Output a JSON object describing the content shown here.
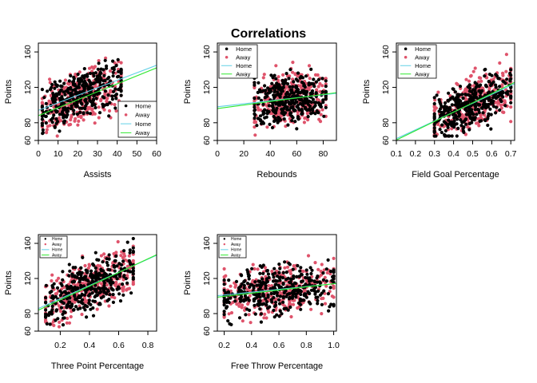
{
  "title": "Correlations",
  "colors": {
    "home_points": "#000000",
    "away_points": "#DF536B",
    "home_line": "#61D0E6",
    "away_line": "#2EE82E"
  },
  "legend_labels": {
    "home_points": "Home",
    "away_points": "Away",
    "home_line": "Home",
    "away_line": "Away"
  },
  "chart_data": [
    {
      "type": "scatter",
      "xlabel": "Assists",
      "ylabel": "Points",
      "xlim": [
        0,
        60
      ],
      "ylim": [
        60,
        170
      ],
      "xticks": [
        "0",
        "10",
        "20",
        "30",
        "40",
        "50",
        "60"
      ],
      "yticks": [
        "60",
        "80",
        "120",
        "160"
      ],
      "legend": "bottom-right",
      "x_range": [
        2,
        42
      ],
      "home_fit": [
        94,
        0.85
      ],
      "away_fit": [
        88,
        0.9
      ],
      "series": [
        {
          "name": "Home"
        },
        {
          "name": "Away"
        }
      ],
      "lines": [
        {
          "name": "Home",
          "intercept": 94,
          "slope": 0.85
        },
        {
          "name": "Away",
          "intercept": 88,
          "slope": 0.9
        }
      ]
    },
    {
      "type": "scatter",
      "xlabel": "Rebounds",
      "ylabel": "Points",
      "xlim": [
        0,
        90
      ],
      "ylim": [
        60,
        170
      ],
      "xticks": [
        "0",
        "20",
        "40",
        "60",
        "80"
      ],
      "yticks": [
        "60",
        "80",
        "120",
        "160"
      ],
      "legend": "top-left",
      "x_range": [
        28,
        82
      ],
      "home_fit": [
        98,
        0.17
      ],
      "away_fit": [
        96,
        0.2
      ],
      "series": [
        {
          "name": "Home"
        },
        {
          "name": "Away"
        }
      ],
      "lines": [
        {
          "name": "Home",
          "intercept": 98,
          "slope": 0.17
        },
        {
          "name": "Away",
          "intercept": 96,
          "slope": 0.2
        }
      ]
    },
    {
      "type": "scatter",
      "xlabel": "Field Goal Percentage",
      "ylabel": "Points",
      "xlim": [
        0.1,
        0.72
      ],
      "ylim": [
        60,
        170
      ],
      "xticks": [
        "0.1",
        "0.2",
        "0.3",
        "0.4",
        "0.5",
        "0.6",
        "0.7"
      ],
      "yticks": [
        "60",
        "80",
        "120",
        "160"
      ],
      "legend": "top-left",
      "x_range": [
        0.3,
        0.7
      ],
      "home_fit": [
        52,
        100
      ],
      "away_fit": [
        50,
        105
      ],
      "series": [
        {
          "name": "Home"
        },
        {
          "name": "Away"
        }
      ],
      "lines": [
        {
          "name": "Home",
          "intercept": 52,
          "slope": 100
        },
        {
          "name": "Away",
          "intercept": 50,
          "slope": 105
        }
      ]
    },
    {
      "type": "scatter",
      "xlabel": "Three Point Percentage",
      "ylabel": "Points",
      "xlim": [
        0.05,
        0.86
      ],
      "ylim": [
        60,
        170
      ],
      "xticks": [
        "0.2",
        "0.4",
        "0.6",
        "0.8"
      ],
      "yticks": [
        "60",
        "80",
        "120",
        "160"
      ],
      "legend": "top-left",
      "x_range": [
        0.1,
        0.7
      ],
      "home_fit": [
        82,
        75
      ],
      "away_fit": [
        80,
        78
      ],
      "series": [
        {
          "name": "Home"
        },
        {
          "name": "Away"
        }
      ],
      "lines": [
        {
          "name": "Home",
          "intercept": 82,
          "slope": 75
        },
        {
          "name": "Away",
          "intercept": 80,
          "slope": 78
        }
      ]
    },
    {
      "type": "scatter",
      "xlabel": "Free Throw Percentage",
      "ylabel": "Points",
      "xlim": [
        0.15,
        1.02
      ],
      "ylim": [
        60,
        170
      ],
      "xticks": [
        "0.2",
        "0.4",
        "0.6",
        "0.8",
        "1.0"
      ],
      "yticks": [
        "60",
        "80",
        "120",
        "160"
      ],
      "legend": "top-left",
      "x_range": [
        0.2,
        1.0
      ],
      "home_fit": [
        98,
        16
      ],
      "away_fit": [
        96,
        18
      ],
      "series": [
        {
          "name": "Home"
        },
        {
          "name": "Away"
        }
      ],
      "lines": [
        {
          "name": "Home",
          "intercept": 98,
          "slope": 16
        },
        {
          "name": "Away",
          "intercept": 96,
          "slope": 18
        }
      ]
    }
  ]
}
